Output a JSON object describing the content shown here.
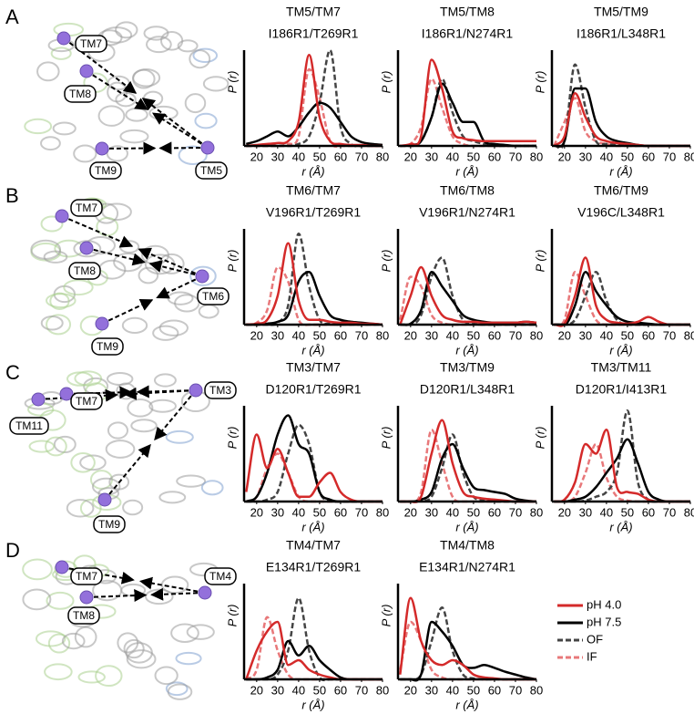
{
  "panels": [
    {
      "letter": "A",
      "labels": [
        "TM7",
        "TM8",
        "TM9",
        "TM5"
      ]
    },
    {
      "letter": "B",
      "labels": [
        "TM7",
        "TM8",
        "TM9",
        "TM6"
      ]
    },
    {
      "letter": "C",
      "labels": [
        "TM7",
        "TM11",
        "TM9",
        "TM3"
      ]
    },
    {
      "letter": "D",
      "labels": [
        "TM7",
        "TM8",
        "TM4"
      ]
    }
  ],
  "legend": [
    {
      "name": "pH 4.0",
      "color": "#d42a2a",
      "dash": false
    },
    {
      "name": "pH 7.5",
      "color": "#000000",
      "dash": false
    },
    {
      "name": "OF",
      "color": "#444444",
      "dash": true
    },
    {
      "name": "IF",
      "color": "#e8787a",
      "dash": true
    }
  ],
  "chart_data": [
    {
      "type": "line",
      "title": "TM5/TM7",
      "subtitle": "I186R1/T269R1",
      "xlabel": "r (Å)",
      "ylabel": "P (r)",
      "x": [
        15,
        20,
        25,
        30,
        35,
        40,
        45,
        50,
        55,
        60,
        65,
        70,
        75,
        80
      ],
      "xlim": [
        14,
        80
      ],
      "xticks": [
        20,
        30,
        40,
        50,
        60,
        70,
        80
      ],
      "ylim": [
        0,
        1
      ],
      "series": [
        {
          "values": [
            0,
            0.01,
            0.02,
            0.03,
            0.05,
            0.25,
            0.95,
            0.3,
            0.05,
            0.02,
            0.01,
            0.01,
            0,
            0
          ]
        },
        {
          "values": [
            0.02,
            0.05,
            0.1,
            0.15,
            0.1,
            0.2,
            0.35,
            0.45,
            0.4,
            0.25,
            0.1,
            0.04,
            0.02,
            0.01
          ]
        },
        {
          "values": [
            0,
            0,
            0,
            0,
            0,
            0.02,
            0.1,
            0.45,
            1.0,
            0.2,
            0.02,
            0,
            0,
            0
          ]
        },
        {
          "values": [
            0,
            0,
            0,
            0,
            0.02,
            0.1,
            0.8,
            0.5,
            0.05,
            0,
            0,
            0,
            0,
            0
          ]
        }
      ]
    },
    {
      "type": "line",
      "title": "TM5/TM8",
      "subtitle": "I186R1/N274R1",
      "xlabel": "r (Å)",
      "ylabel": "P (r)",
      "x": [
        15,
        20,
        25,
        30,
        35,
        40,
        45,
        50,
        55,
        60,
        65,
        70,
        75,
        80
      ],
      "xlim": [
        14,
        80
      ],
      "xticks": [
        20,
        30,
        40,
        50,
        60,
        70,
        80
      ],
      "ylim": [
        0,
        1
      ],
      "series": [
        {
          "values": [
            0,
            0.02,
            0.1,
            0.9,
            0.6,
            0.15,
            0.08,
            0.06,
            0.05,
            0.05,
            0.05,
            0.05,
            0.05,
            0.05
          ]
        },
        {
          "values": [
            0,
            0.01,
            0.05,
            0.3,
            0.65,
            0.45,
            0.25,
            0.25,
            0.05,
            0.02,
            0.01,
            0,
            0,
            0
          ]
        },
        {
          "values": [
            0,
            0,
            0.05,
            0.3,
            0.7,
            0.35,
            0.1,
            0.05,
            0.02,
            0,
            0,
            0,
            0,
            0
          ]
        },
        {
          "values": [
            0,
            0.02,
            0.2,
            0.7,
            0.4,
            0.1,
            0.02,
            0,
            0,
            0,
            0,
            0,
            0,
            0
          ]
        }
      ]
    },
    {
      "type": "line",
      "title": "TM5/TM9",
      "subtitle": "I186R1/L348R1",
      "xlabel": "r (Å)",
      "ylabel": "P (r)",
      "x": [
        15,
        20,
        25,
        30,
        35,
        40,
        45,
        50,
        55,
        60,
        65,
        70,
        75,
        80
      ],
      "xlim": [
        14,
        80
      ],
      "xticks": [
        20,
        30,
        40,
        50,
        60,
        70,
        80
      ],
      "ylim": [
        0,
        1
      ],
      "series": [
        {
          "values": [
            0,
            0.1,
            0.55,
            0.3,
            0.1,
            0.05,
            0.03,
            0.02,
            0.01,
            0,
            0,
            0,
            0,
            0
          ]
        },
        {
          "values": [
            0,
            0.05,
            0.6,
            0.6,
            0.25,
            0.1,
            0.05,
            0.03,
            0.01,
            0,
            0,
            0,
            0,
            0
          ]
        },
        {
          "values": [
            0,
            0.05,
            0.85,
            0.4,
            0.05,
            0.02,
            0.01,
            0,
            0,
            0,
            0,
            0,
            0,
            0
          ]
        },
        {
          "values": [
            0,
            0.25,
            0.5,
            0.15,
            0.05,
            0.02,
            0,
            0,
            0,
            0,
            0,
            0,
            0,
            0
          ]
        }
      ]
    },
    {
      "type": "line",
      "title": "TM6/TM7",
      "subtitle": "V196R1/T269R1",
      "xlabel": "r (Å)",
      "ylabel": "P (r)",
      "x": [
        15,
        20,
        25,
        30,
        35,
        40,
        45,
        50,
        55,
        60,
        65,
        70,
        75,
        80
      ],
      "xlim": [
        14,
        80
      ],
      "xticks": [
        20,
        30,
        40,
        50,
        60,
        70,
        80
      ],
      "ylim": [
        0,
        1
      ],
      "series": [
        {
          "values": [
            0,
            0.01,
            0.05,
            0.3,
            0.85,
            0.25,
            0.05,
            0.05,
            0.03,
            0.02,
            0.02,
            0.01,
            0.01,
            0
          ]
        },
        {
          "values": [
            0,
            0,
            0.01,
            0.03,
            0.1,
            0.45,
            0.55,
            0.3,
            0.1,
            0.05,
            0.03,
            0.02,
            0.01,
            0
          ]
        },
        {
          "values": [
            0,
            0,
            0,
            0.02,
            0.2,
            0.95,
            0.4,
            0.05,
            0.01,
            0,
            0,
            0,
            0,
            0
          ]
        },
        {
          "values": [
            0,
            0.02,
            0.15,
            0.6,
            0.45,
            0.05,
            0,
            0,
            0,
            0,
            0,
            0,
            0,
            0
          ]
        }
      ]
    },
    {
      "type": "line",
      "title": "TM6/TM8",
      "subtitle": "V196R1/N274R1",
      "xlabel": "r (Å)",
      "ylabel": "P (r)",
      "x": [
        15,
        20,
        25,
        30,
        35,
        40,
        45,
        50,
        55,
        60,
        65,
        70,
        75,
        80
      ],
      "xlim": [
        14,
        80
      ],
      "xticks": [
        20,
        30,
        40,
        50,
        60,
        70,
        80
      ],
      "ylim": [
        0,
        1
      ],
      "series": [
        {
          "values": [
            0,
            0.3,
            0.6,
            0.3,
            0.1,
            0.05,
            0.03,
            0.03,
            0.02,
            0.02,
            0.02,
            0.02,
            0.03,
            0.02
          ]
        },
        {
          "values": [
            0,
            0.01,
            0.15,
            0.55,
            0.4,
            0.25,
            0.1,
            0.05,
            0.03,
            0.02,
            0.02,
            0.02,
            0.03,
            0.02
          ]
        },
        {
          "values": [
            0,
            0,
            0.1,
            0.5,
            0.7,
            0.3,
            0.05,
            0.01,
            0,
            0,
            0,
            0,
            0,
            0
          ]
        },
        {
          "values": [
            0.05,
            0.5,
            0.4,
            0.1,
            0.02,
            0,
            0,
            0,
            0,
            0,
            0,
            0,
            0,
            0
          ]
        }
      ]
    },
    {
      "type": "line",
      "title": "TM6/TM9",
      "subtitle": "V196C/L348R1",
      "xlabel": "r (Å)",
      "ylabel": "P (r)",
      "x": [
        15,
        20,
        25,
        30,
        35,
        40,
        45,
        50,
        55,
        60,
        65,
        70,
        75,
        80
      ],
      "xlim": [
        14,
        80
      ],
      "xticks": [
        20,
        30,
        40,
        50,
        60,
        70,
        80
      ],
      "ylim": [
        0,
        1
      ],
      "series": [
        {
          "values": [
            0,
            0.01,
            0.3,
            0.7,
            0.2,
            0.05,
            0.02,
            0.01,
            0.03,
            0.08,
            0.03,
            0,
            0,
            0
          ]
        },
        {
          "values": [
            0,
            0,
            0.2,
            0.55,
            0.35,
            0.2,
            0.08,
            0.03,
            0.02,
            0.01,
            0,
            0,
            0,
            0
          ]
        },
        {
          "values": [
            0,
            0,
            0.05,
            0.3,
            0.55,
            0.25,
            0.05,
            0,
            0,
            0,
            0,
            0,
            0,
            0
          ]
        },
        {
          "values": [
            0,
            0.05,
            0.55,
            0.3,
            0.05,
            0,
            0,
            0,
            0,
            0,
            0,
            0,
            0,
            0
          ]
        }
      ]
    },
    {
      "type": "line",
      "title": "TM3/TM7",
      "subtitle": "D120R1/T269R1",
      "xlabel": "r (Å)",
      "ylabel": "P (r)",
      "x": [
        15,
        20,
        25,
        30,
        35,
        40,
        45,
        50,
        55,
        60,
        65,
        70,
        75,
        80
      ],
      "xlim": [
        14,
        80
      ],
      "xticks": [
        20,
        30,
        40,
        50,
        60,
        70,
        80
      ],
      "ylim": [
        0,
        1
      ],
      "series": [
        {
          "values": [
            0.1,
            0.7,
            0.35,
            0.55,
            0.3,
            0.05,
            0.05,
            0.2,
            0.3,
            0.1,
            0.02,
            0,
            0,
            0
          ]
        },
        {
          "values": [
            0,
            0.05,
            0.3,
            0.7,
            0.9,
            0.6,
            0.5,
            0.1,
            0.02,
            0,
            0,
            0,
            0,
            0
          ]
        },
        {
          "values": [
            0,
            0,
            0.02,
            0.1,
            0.5,
            0.8,
            0.6,
            0.1,
            0.01,
            0,
            0,
            0,
            0,
            0
          ]
        },
        {
          "values": [
            0,
            0.05,
            0.35,
            0.5,
            0.3,
            0.05,
            0,
            0,
            0,
            0,
            0,
            0,
            0,
            0
          ]
        }
      ]
    },
    {
      "type": "line",
      "title": "TM3/TM9",
      "subtitle": "D120R1/L348R1",
      "xlabel": "r (Å)",
      "ylabel": "P (r)",
      "x": [
        15,
        20,
        25,
        30,
        35,
        40,
        45,
        50,
        55,
        60,
        65,
        70,
        75,
        80
      ],
      "xlim": [
        14,
        80
      ],
      "xticks": [
        20,
        30,
        40,
        50,
        60,
        70,
        80
      ],
      "ylim": [
        0,
        1
      ],
      "series": [
        {
          "values": [
            0,
            0,
            0.05,
            0.5,
            0.85,
            0.4,
            0.1,
            0.05,
            0.03,
            0.02,
            0.01,
            0,
            0,
            0
          ]
        },
        {
          "values": [
            0,
            0,
            0.02,
            0.1,
            0.45,
            0.6,
            0.35,
            0.15,
            0.12,
            0.1,
            0.08,
            0.03,
            0.01,
            0
          ]
        },
        {
          "values": [
            0,
            0,
            0.01,
            0.05,
            0.35,
            0.7,
            0.3,
            0.05,
            0.02,
            0,
            0,
            0,
            0,
            0
          ]
        },
        {
          "values": [
            0,
            0,
            0.1,
            0.75,
            0.4,
            0.05,
            0,
            0,
            0,
            0,
            0,
            0,
            0,
            0
          ]
        }
      ]
    },
    {
      "type": "line",
      "title": "TM3/TM11",
      "subtitle": "D120R1/I413R1",
      "xlabel": "r (Å)",
      "ylabel": "P (r)",
      "x": [
        15,
        20,
        25,
        30,
        35,
        40,
        45,
        50,
        55,
        60,
        65,
        70,
        75,
        80
      ],
      "xlim": [
        14,
        80
      ],
      "xticks": [
        20,
        30,
        40,
        50,
        60,
        70,
        80
      ],
      "ylim": [
        0,
        1
      ],
      "series": [
        {
          "values": [
            0,
            0.02,
            0.2,
            0.6,
            0.5,
            0.75,
            0.15,
            0.1,
            0.08,
            0.02,
            0,
            0,
            0,
            0
          ]
        },
        {
          "values": [
            0,
            0,
            0.02,
            0.05,
            0.15,
            0.3,
            0.45,
            0.65,
            0.4,
            0.1,
            0.02,
            0,
            0,
            0
          ]
        },
        {
          "values": [
            0,
            0,
            0,
            0.01,
            0.05,
            0.1,
            0.3,
            0.95,
            0.2,
            0.02,
            0,
            0,
            0,
            0
          ]
        },
        {
          "values": [
            0,
            0,
            0.05,
            0.3,
            0.6,
            0.25,
            0.05,
            0.01,
            0,
            0,
            0,
            0,
            0,
            0
          ]
        }
      ]
    },
    {
      "type": "line",
      "title": "TM4/TM7",
      "subtitle": "E134R1/T269R1",
      "xlabel": "r (Å)",
      "ylabel": "P (r)",
      "x": [
        15,
        20,
        25,
        30,
        35,
        40,
        45,
        50,
        55,
        60,
        65,
        70,
        75,
        80
      ],
      "xlim": [
        14,
        80
      ],
      "xticks": [
        20,
        30,
        40,
        50,
        60,
        70,
        80
      ],
      "ylim": [
        0,
        1
      ],
      "series": [
        {
          "values": [
            0,
            0.3,
            0.5,
            0.6,
            0.15,
            0.2,
            0.1,
            0.05,
            0.02,
            0,
            0,
            0,
            0,
            0
          ]
        },
        {
          "values": [
            0,
            0,
            0.02,
            0.1,
            0.4,
            0.25,
            0.35,
            0.2,
            0.1,
            0.02,
            0,
            0,
            0,
            0
          ]
        },
        {
          "values": [
            0,
            0,
            0,
            0.05,
            0.3,
            0.85,
            0.3,
            0.02,
            0,
            0,
            0,
            0,
            0,
            0
          ]
        },
        {
          "values": [
            0,
            0.1,
            0.65,
            0.3,
            0.05,
            0,
            0,
            0,
            0,
            0,
            0,
            0,
            0,
            0
          ]
        }
      ]
    },
    {
      "type": "line",
      "title": "TM4/TM8",
      "subtitle": "E134R1/N274R1",
      "xlabel": "r (Å)",
      "ylabel": "P (r)",
      "x": [
        15,
        20,
        25,
        30,
        35,
        40,
        45,
        50,
        55,
        60,
        65,
        70,
        75,
        80
      ],
      "xlim": [
        14,
        80
      ],
      "xticks": [
        20,
        30,
        40,
        50,
        60,
        70,
        80
      ],
      "ylim": [
        0,
        1
      ],
      "series": [
        {
          "values": [
            0.05,
            0.85,
            0.4,
            0.2,
            0.15,
            0.2,
            0.15,
            0.05,
            0.02,
            0.01,
            0,
            0,
            0,
            0
          ]
        },
        {
          "values": [
            0,
            0,
            0.05,
            0.6,
            0.5,
            0.35,
            0.15,
            0.12,
            0.15,
            0.12,
            0.08,
            0.05,
            0.02,
            0
          ]
        },
        {
          "values": [
            0,
            0,
            0.05,
            0.4,
            0.75,
            0.3,
            0.05,
            0.01,
            0,
            0,
            0,
            0,
            0,
            0
          ]
        },
        {
          "values": [
            0.1,
            0.6,
            0.4,
            0.1,
            0.02,
            0,
            0,
            0,
            0,
            0,
            0,
            0,
            0,
            0
          ]
        }
      ]
    }
  ]
}
